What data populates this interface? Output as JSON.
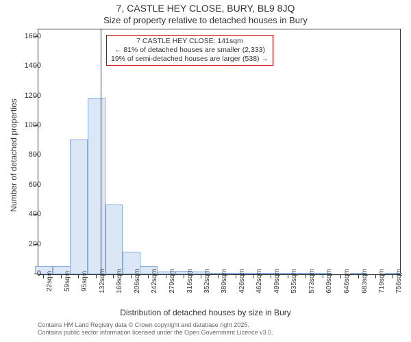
{
  "title_main": "7, CASTLE HEY CLOSE, BURY, BL9 8JQ",
  "title_sub": "Size of property relative to detached houses in Bury",
  "y_axis_label": "Number of detached properties",
  "x_axis_label": "Distribution of detached houses by size in Bury",
  "footer_line1": "Contains HM Land Registry data © Crown copyright and database right 2025.",
  "footer_line2": "Contains public sector information licensed under the Open Government Licence v3.0.",
  "annotation": {
    "line1": "7 CASTLE HEY CLOSE: 141sqm",
    "line2": "← 81% of detached houses are smaller (2,333)",
    "line3": "19% of semi-detached houses are larger (538) →"
  },
  "chart": {
    "type": "histogram",
    "background_color": "#ffffff",
    "bar_fill": "#dbe7f5",
    "bar_stroke": "#88aadd",
    "marker_color": "#cc0000",
    "marker_x": 141,
    "x_min": 10,
    "x_max": 770,
    "y_min": 0,
    "y_max": 1650,
    "y_ticks": [
      0,
      200,
      400,
      600,
      800,
      1000,
      1200,
      1400,
      1600
    ],
    "x_ticks": [
      22,
      59,
      95,
      132,
      169,
      206,
      242,
      279,
      316,
      352,
      389,
      426,
      462,
      499,
      535,
      573,
      609,
      646,
      683,
      719,
      756
    ],
    "x_tick_suffix": "sqm",
    "bin_width": 37,
    "bins": [
      {
        "x": 22,
        "count": 55
      },
      {
        "x": 59,
        "count": 55
      },
      {
        "x": 95,
        "count": 910
      },
      {
        "x": 132,
        "count": 1190
      },
      {
        "x": 169,
        "count": 470
      },
      {
        "x": 206,
        "count": 150
      },
      {
        "x": 242,
        "count": 55
      },
      {
        "x": 279,
        "count": 20
      },
      {
        "x": 316,
        "count": 22
      },
      {
        "x": 352,
        "count": 18
      },
      {
        "x": 389,
        "count": 10
      },
      {
        "x": 426,
        "count": 3
      },
      {
        "x": 462,
        "count": 2
      },
      {
        "x": 499,
        "count": 1
      },
      {
        "x": 535,
        "count": 2
      },
      {
        "x": 573,
        "count": 1
      },
      {
        "x": 609,
        "count": 1
      },
      {
        "x": 646,
        "count": 0
      },
      {
        "x": 683,
        "count": 1
      },
      {
        "x": 719,
        "count": 0
      },
      {
        "x": 756,
        "count": 1
      }
    ]
  }
}
